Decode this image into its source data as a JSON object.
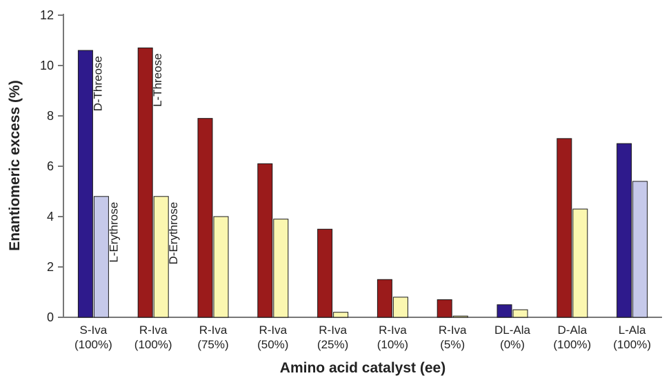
{
  "chart_data": {
    "type": "bar",
    "title": "",
    "xlabel": "Amino acid catalyst (ee)",
    "ylabel": "Enantiomeric excess (%)",
    "ylim": [
      0,
      12
    ],
    "yticks": [
      "0",
      "2",
      "4",
      "6",
      "8",
      "10",
      "12"
    ],
    "grid": false,
    "categories": [
      [
        "S-Iva",
        "(100%)"
      ],
      [
        "R-Iva",
        "(100%)"
      ],
      [
        "R-Iva",
        "(75%)"
      ],
      [
        "R-Iva",
        "(50%)"
      ],
      [
        "R-Iva",
        "(25%)"
      ],
      [
        "R-Iva",
        "(10%)"
      ],
      [
        "R-Iva",
        "(5%)"
      ],
      [
        "DL-Ala",
        "(0%)"
      ],
      [
        "D-Ala",
        "(100%)"
      ],
      [
        "L-Ala",
        "(100%)"
      ]
    ],
    "bars": [
      {
        "threose": 10.6,
        "erythrose": 4.8,
        "threose_color": "#2e1a8c",
        "erythrose_color": "#c6c9ea"
      },
      {
        "threose": 10.7,
        "erythrose": 4.8,
        "threose_color": "#9b1b1b",
        "erythrose_color": "#fbf7b0"
      },
      {
        "threose": 7.9,
        "erythrose": 4.0,
        "threose_color": "#9b1b1b",
        "erythrose_color": "#fbf7b0"
      },
      {
        "threose": 6.1,
        "erythrose": 3.9,
        "threose_color": "#9b1b1b",
        "erythrose_color": "#fbf7b0"
      },
      {
        "threose": 3.5,
        "erythrose": 0.2,
        "threose_color": "#9b1b1b",
        "erythrose_color": "#fbf7b0"
      },
      {
        "threose": 1.5,
        "erythrose": 0.8,
        "threose_color": "#9b1b1b",
        "erythrose_color": "#fbf7b0"
      },
      {
        "threose": 0.7,
        "erythrose": 0.05,
        "threose_color": "#9b1b1b",
        "erythrose_color": "#fbf7b0"
      },
      {
        "threose": 0.5,
        "erythrose": 0.3,
        "threose_color": "#2e1a8c",
        "erythrose_color": "#fbf7b0"
      },
      {
        "threose": 7.1,
        "erythrose": 4.3,
        "threose_color": "#9b1b1b",
        "erythrose_color": "#fbf7b0"
      },
      {
        "threose": 6.9,
        "erythrose": 5.4,
        "threose_color": "#2e1a8c",
        "erythrose_color": "#c6c9ea"
      }
    ],
    "annotations": [
      {
        "text": "D-Threose",
        "category": 0,
        "bar": "threose"
      },
      {
        "text": "L-Erythrose",
        "category": 0,
        "bar": "erythrose"
      },
      {
        "text": "L-Threose",
        "category": 1,
        "bar": "threose"
      },
      {
        "text": "D-Erythrose",
        "category": 1,
        "bar": "erythrose"
      }
    ]
  }
}
